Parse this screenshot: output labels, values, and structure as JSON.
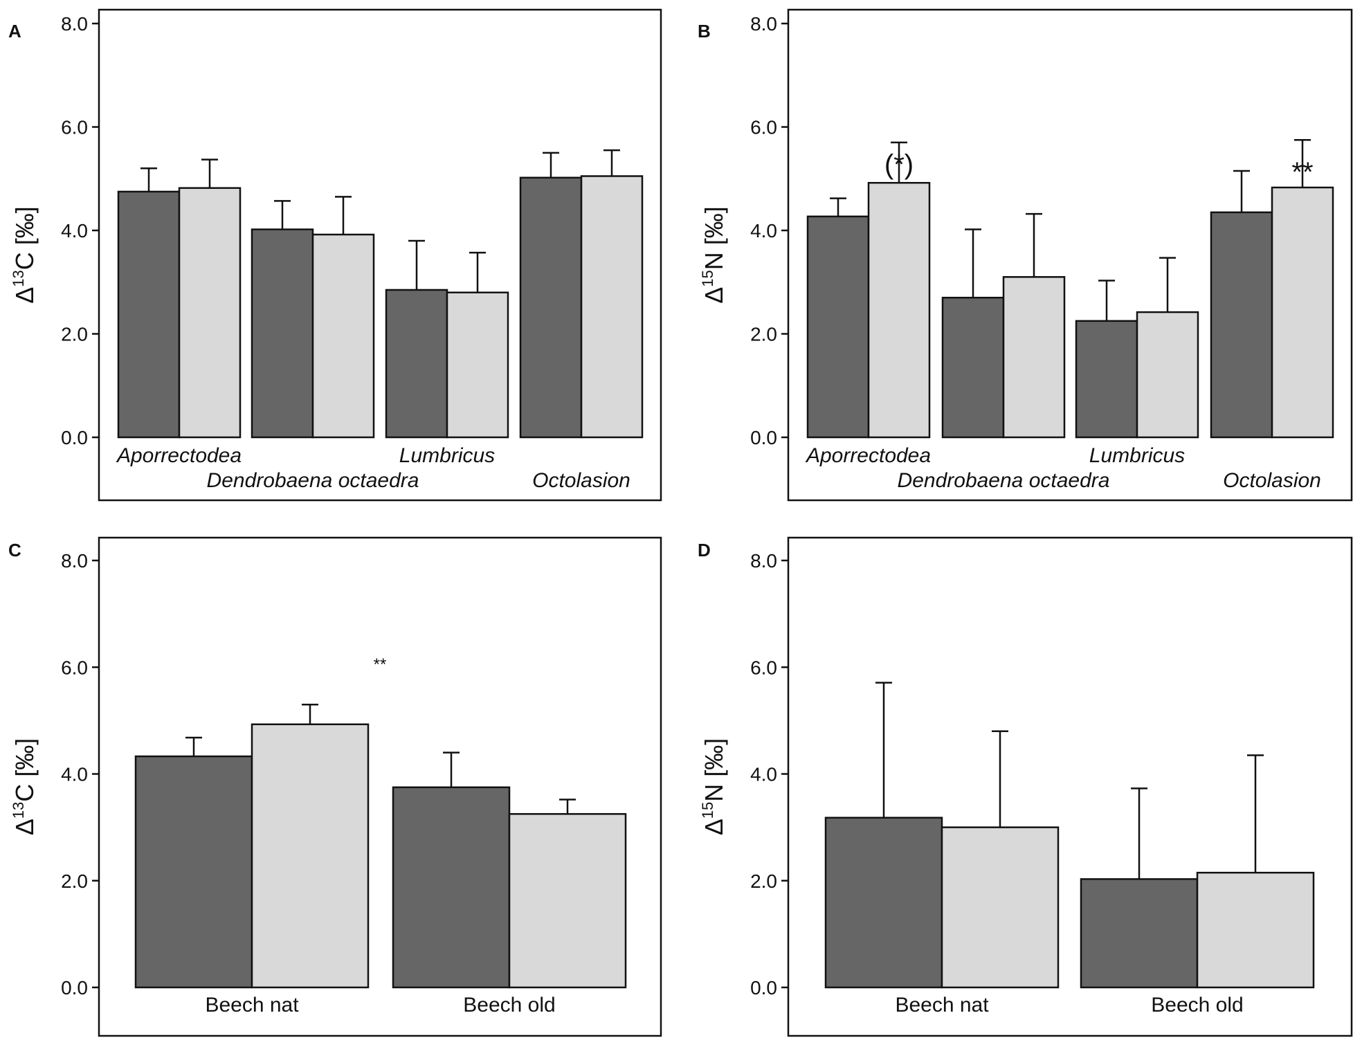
{
  "colors": {
    "dark_bar": "#666666",
    "light_bar": "#d9d9d9",
    "axis": "#111111"
  },
  "chart_data": [
    {
      "panel": "A",
      "type": "bar",
      "ylabel": {
        "prefix": "Δ",
        "sup": "13",
        "suffix": "C [‰]"
      },
      "ylim": [
        -1.3,
        8.3
      ],
      "yticks": [
        "0.0",
        "2.0",
        "4.0",
        "6.0",
        "8.0"
      ],
      "ytick_values": [
        0,
        2,
        4,
        6,
        8
      ],
      "category_style": "italic",
      "categories": [
        "Aporrectodea",
        "Dendrobaena octaedra",
        "Lumbricus",
        "Octolasion"
      ],
      "category_rows": [
        0,
        1,
        0,
        1
      ],
      "series": [
        {
          "name": "dark",
          "color": "#666666",
          "values": [
            4.75,
            4.02,
            2.85,
            5.02
          ],
          "errors": [
            0.45,
            0.55,
            0.95,
            0.48
          ]
        },
        {
          "name": "light",
          "color": "#d9d9d9",
          "values": [
            4.82,
            3.92,
            2.8,
            5.05
          ],
          "errors": [
            0.55,
            0.73,
            0.77,
            0.5
          ]
        }
      ],
      "annotations": []
    },
    {
      "panel": "B",
      "type": "bar",
      "ylabel": {
        "prefix": "Δ",
        "sup": "15",
        "suffix": "N [‰]"
      },
      "ylim": [
        -1.3,
        8.3
      ],
      "yticks": [
        "0.0",
        "2.0",
        "4.0",
        "6.0",
        "8.0"
      ],
      "ytick_values": [
        0,
        2,
        4,
        6,
        8
      ],
      "category_style": "italic",
      "categories": [
        "Aporrectodea",
        "Dendrobaena octaedra",
        "Lumbricus",
        "Octolasion"
      ],
      "category_rows": [
        0,
        1,
        0,
        1
      ],
      "series": [
        {
          "name": "dark",
          "color": "#666666",
          "values": [
            4.27,
            2.7,
            2.25,
            4.35
          ],
          "errors": [
            0.35,
            1.32,
            0.78,
            0.8
          ]
        },
        {
          "name": "light",
          "color": "#d9d9d9",
          "values": [
            4.92,
            3.1,
            2.42,
            4.83
          ],
          "errors": [
            0.78,
            1.22,
            1.05,
            0.92
          ]
        }
      ],
      "annotations": [
        {
          "text": "(*)",
          "category": 0,
          "y": 5.1
        },
        {
          "text": "**",
          "category": 3,
          "y": 4.95
        }
      ]
    },
    {
      "panel": "C",
      "type": "bar",
      "ylabel": {
        "prefix": "Δ",
        "sup": "13",
        "suffix": "C [‰]"
      },
      "ylim": [
        -0.9,
        8.3
      ],
      "yticks": [
        "0.0",
        "2.0",
        "4.0",
        "6.0",
        "8.0"
      ],
      "ytick_values": [
        0,
        2,
        4,
        6,
        8
      ],
      "category_style": "normal",
      "categories": [
        "Beech nat",
        "Beech old"
      ],
      "category_rows": [
        0,
        0
      ],
      "series": [
        {
          "name": "dark",
          "color": "#666666",
          "values": [
            4.33,
            3.75
          ],
          "errors": [
            0.35,
            0.65
          ]
        },
        {
          "name": "light",
          "color": "#d9d9d9",
          "values": [
            4.93,
            3.25
          ],
          "errors": [
            0.37,
            0.27
          ]
        }
      ],
      "annotations": [
        {
          "text": "**",
          "category": 0.5,
          "y": 5.95,
          "small": true
        }
      ]
    },
    {
      "panel": "D",
      "type": "bar",
      "ylabel": {
        "prefix": "Δ",
        "sup": "15",
        "suffix": "N [‰]"
      },
      "ylim": [
        -0.9,
        8.3
      ],
      "yticks": [
        "0.0",
        "2.0",
        "4.0",
        "6.0",
        "8.0"
      ],
      "ytick_values": [
        0,
        2,
        4,
        6,
        8
      ],
      "category_style": "normal",
      "categories": [
        "Beech nat",
        "Beech old"
      ],
      "category_rows": [
        0,
        0
      ],
      "series": [
        {
          "name": "dark",
          "color": "#666666",
          "values": [
            3.18,
            2.03
          ],
          "errors": [
            2.53,
            1.7
          ]
        },
        {
          "name": "light",
          "color": "#d9d9d9",
          "values": [
            3.0,
            2.15
          ],
          "errors": [
            1.8,
            2.2
          ]
        }
      ],
      "annotations": []
    }
  ]
}
